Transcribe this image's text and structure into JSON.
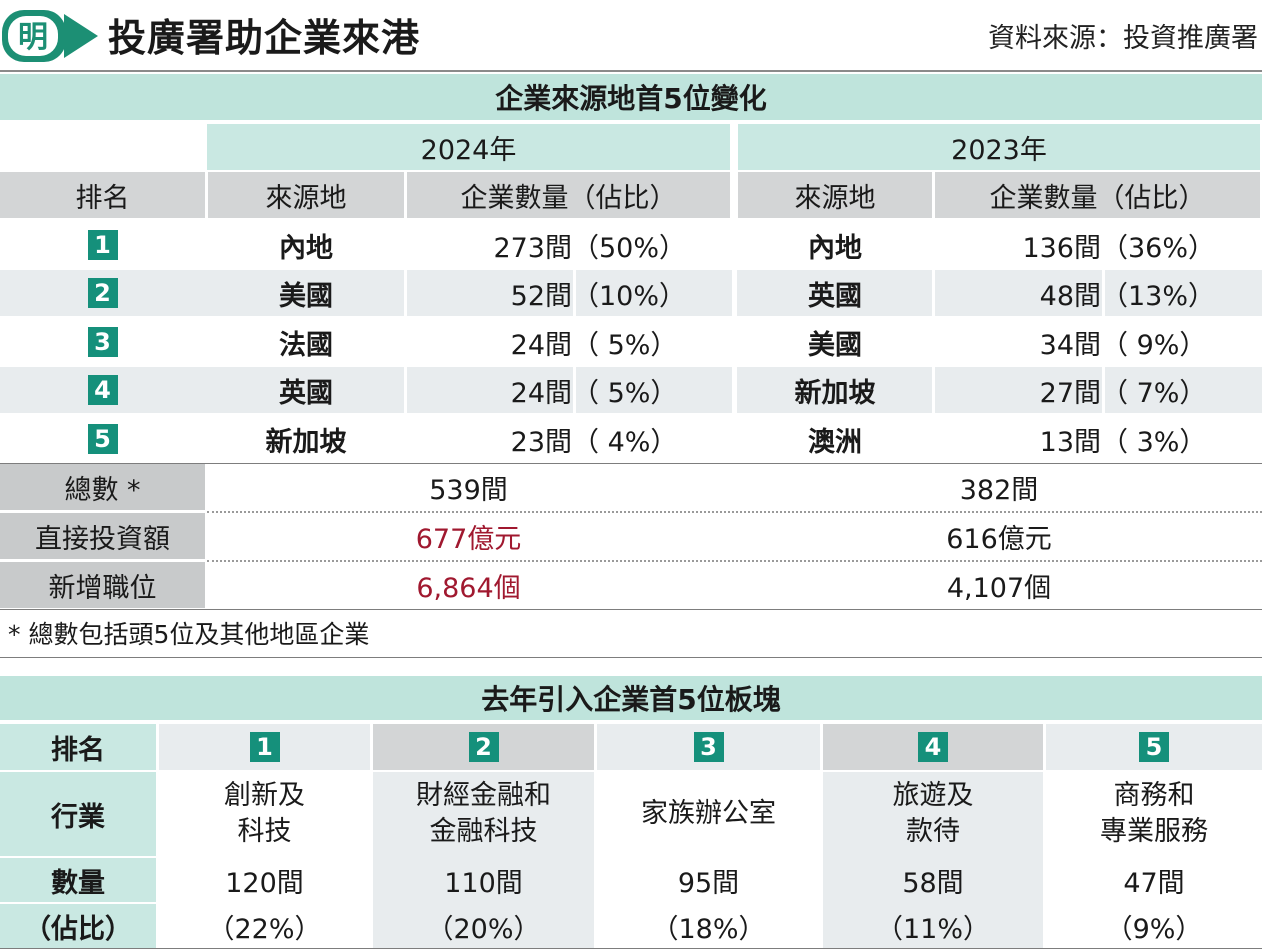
{
  "header": {
    "logo_char": "明",
    "headline": "投廣署助企業來港",
    "source": "資料來源：投資推廣署"
  },
  "table1": {
    "title": "企業來源地首5位變化",
    "year_2024": "2024年",
    "year_2023": "2023年",
    "col_rank": "排名",
    "col_origin": "來源地",
    "col_count": "企業數量（佔比）",
    "rows": [
      {
        "rank": "1",
        "origin_2024": "內地",
        "count_2024": "273間",
        "pct_2024": "（50%）",
        "origin_2023": "內地",
        "count_2023": "136間",
        "pct_2023": "（36%）"
      },
      {
        "rank": "2",
        "origin_2024": "美國",
        "count_2024": "52間",
        "pct_2024": "（10%）",
        "origin_2023": "英國",
        "count_2023": "48間",
        "pct_2023": "（13%）"
      },
      {
        "rank": "3",
        "origin_2024": "法國",
        "count_2024": "24間",
        "pct_2024": "（ 5%）",
        "origin_2023": "美國",
        "count_2023": "34間",
        "pct_2023": "（ 9%）"
      },
      {
        "rank": "4",
        "origin_2024": "英國",
        "count_2024": "24間",
        "pct_2024": "（ 5%）",
        "origin_2023": "新加坡",
        "count_2023": "27間",
        "pct_2023": "（ 7%）"
      },
      {
        "rank": "5",
        "origin_2024": "新加坡",
        "count_2024": "23間",
        "pct_2024": "（ 4%）",
        "origin_2023": "澳洲",
        "count_2023": "13間",
        "pct_2023": "（ 3%）"
      }
    ],
    "totals": [
      {
        "label": "總數 *",
        "v2024": "539間",
        "v2023": "382間"
      },
      {
        "label": "直接投資額",
        "v2024": "677億元",
        "v2023": "616億元"
      },
      {
        "label": "新增職位",
        "v2024": "6,864個",
        "v2023": "4,107個"
      }
    ],
    "footnote": "* 總數包括頭5位及其他地區企業"
  },
  "table2": {
    "title": "去年引入企業首5位板塊",
    "row_rank": "排名",
    "row_industry": "行業",
    "row_count": "數量",
    "row_pct": "（佔比）",
    "cols": [
      {
        "rank": "1",
        "industry_l1": "創新及",
        "industry_l2": "科技",
        "count": "120間",
        "pct": "（22%）"
      },
      {
        "rank": "2",
        "industry_l1": "財經金融和",
        "industry_l2": "金融科技",
        "count": "110間",
        "pct": "（20%）"
      },
      {
        "rank": "3",
        "industry_l1": "家族辦公室",
        "industry_l2": "",
        "count": "95間",
        "pct": "（18%）"
      },
      {
        "rank": "4",
        "industry_l1": "旅遊及",
        "industry_l2": "款待",
        "count": "58間",
        "pct": "（11%）"
      },
      {
        "rank": "5",
        "industry_l1": "商務和",
        "industry_l2": "專業服務",
        "count": "47間",
        "pct": "（9%）"
      }
    ]
  },
  "chart_data": [
    {
      "type": "table",
      "title": "企業來源地首5位變化",
      "columns": [
        "排名",
        "來源地 2024年",
        "企業數量 2024年",
        "佔比 2024年",
        "來源地 2023年",
        "企業數量 2023年",
        "佔比 2023年"
      ],
      "rows": [
        [
          1,
          "內地",
          273,
          50,
          "內地",
          136,
          36
        ],
        [
          2,
          "美國",
          52,
          10,
          "英國",
          48,
          13
        ],
        [
          3,
          "法國",
          24,
          5,
          "美國",
          34,
          9
        ],
        [
          4,
          "英國",
          24,
          5,
          "新加坡",
          27,
          7
        ],
        [
          5,
          "新加坡",
          23,
          4,
          "澳洲",
          13,
          3
        ]
      ],
      "totals": {
        "總數": [
          539,
          382
        ],
        "直接投資額（億元）": [
          677,
          616
        ],
        "新增職位": [
          6864,
          4107
        ]
      }
    },
    {
      "type": "table",
      "title": "去年引入企業首5位板塊",
      "columns": [
        "排名",
        "行業",
        "數量",
        "佔比"
      ],
      "rows": [
        [
          1,
          "創新及科技",
          120,
          22
        ],
        [
          2,
          "財經金融和金融科技",
          110,
          20
        ],
        [
          3,
          "家族辦公室",
          95,
          18
        ],
        [
          4,
          "旅遊及款待",
          58,
          11
        ],
        [
          5,
          "商務和專業服務",
          47,
          9
        ]
      ]
    }
  ],
  "colors": {
    "teal_accent": "#15907b",
    "teal_light": "#c9e8e2",
    "gray_header": "#d3d5d6",
    "highlight_red": "#a0182f"
  }
}
